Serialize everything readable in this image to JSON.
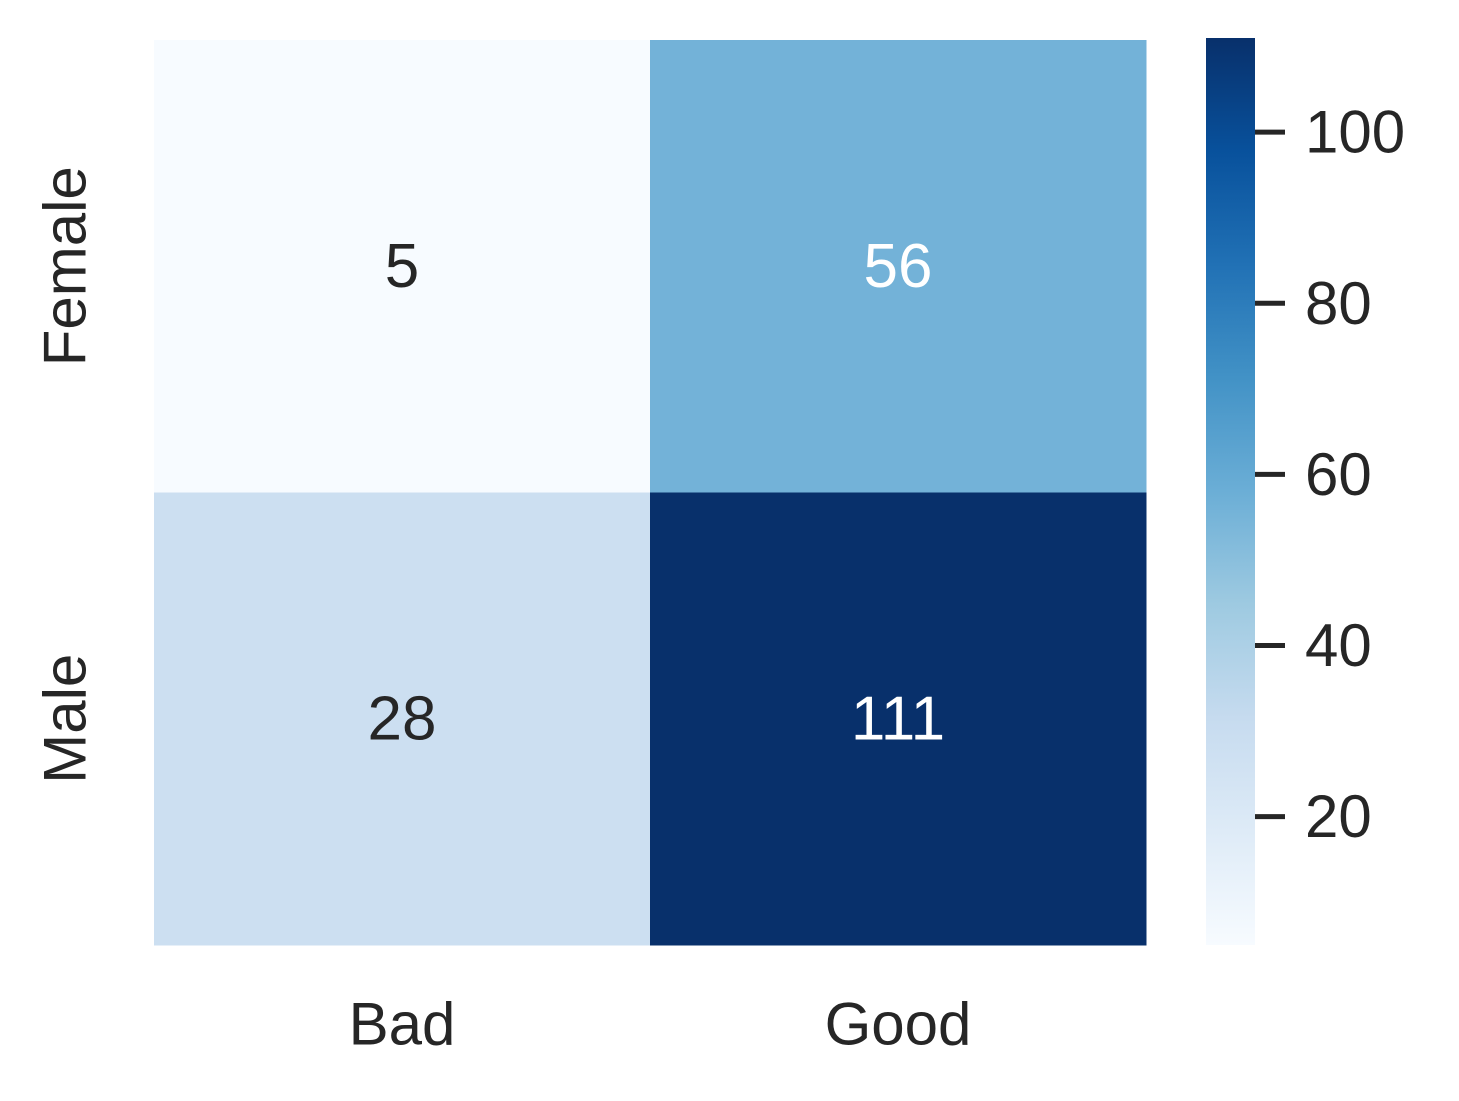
{
  "chart_data": {
    "type": "heatmap",
    "title": "",
    "xlabel": "",
    "ylabel": "",
    "x_categories": [
      "Bad",
      "Good"
    ],
    "y_categories": [
      "Female",
      "Male"
    ],
    "values": [
      [
        5,
        56
      ],
      [
        28,
        111
      ]
    ],
    "colormap": "Blues",
    "colorbar": {
      "min": 5,
      "max": 111,
      "ticks": [
        20,
        40,
        60,
        80,
        100
      ],
      "tick_labels": [
        "20",
        "40",
        "60",
        "80",
        "100"
      ]
    },
    "grid": false
  },
  "colors": {
    "text_dark": "#262626",
    "text_light": "#ffffff",
    "cmap_stops": [
      "#f7fbff",
      "#deebf7",
      "#c6dbef",
      "#9ecae1",
      "#6baed6",
      "#4292c6",
      "#2171b5",
      "#08519c",
      "#08306b"
    ]
  }
}
